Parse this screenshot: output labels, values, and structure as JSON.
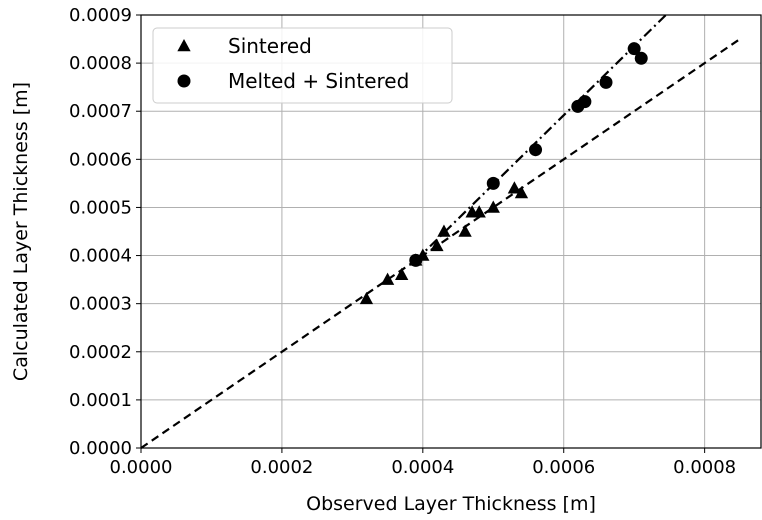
{
  "chart_data": {
    "type": "scatter",
    "xlabel": "Observed Layer Thickness [m]",
    "ylabel": "Calculated Layer Thickness [m]",
    "xlim": [
      0,
      0.00088
    ],
    "ylim": [
      0,
      0.0009
    ],
    "x_ticks": [
      "0.0000",
      "0.0002",
      "0.0004",
      "0.0006",
      "0.0008"
    ],
    "y_ticks": [
      "0.0000",
      "0.0001",
      "0.0002",
      "0.0003",
      "0.0004",
      "0.0005",
      "0.0006",
      "0.0007",
      "0.0008",
      "0.0009"
    ],
    "x_tick_values": [
      0,
      0.0002,
      0.0004,
      0.0006,
      0.0008
    ],
    "y_tick_values": [
      0,
      0.0001,
      0.0002,
      0.0003,
      0.0004,
      0.0005,
      0.0006,
      0.0007,
      0.0008,
      0.0009
    ],
    "grid": true,
    "legend_position": "top-left",
    "series": [
      {
        "name": "Sintered",
        "marker": "triangle",
        "color": "#000000",
        "x": [
          0.00032,
          0.00035,
          0.00037,
          0.00039,
          0.0004,
          0.00042,
          0.00043,
          0.00046,
          0.00047,
          0.00048,
          0.0005,
          0.00053,
          0.00054
        ],
        "y": [
          0.00031,
          0.00035,
          0.00036,
          0.00039,
          0.0004,
          0.00042,
          0.00045,
          0.00045,
          0.00049,
          0.00049,
          0.0005,
          0.00054,
          0.00053
        ]
      },
      {
        "name": "Melted + Sintered",
        "marker": "circle",
        "color": "#000000",
        "x": [
          0.00039,
          0.0005,
          0.00056,
          0.00062,
          0.00063,
          0.00066,
          0.0007,
          0.00071
        ],
        "y": [
          0.00039,
          0.00055,
          0.00062,
          0.00071,
          0.00072,
          0.00076,
          0.00083,
          0.00081
        ]
      }
    ],
    "reference_lines": [
      {
        "style": "dashed",
        "x": [
          0,
          0.00085
        ],
        "y": [
          0,
          0.00085
        ]
      },
      {
        "style": "dash-dot",
        "x": [
          0.00039,
          0.000745
        ],
        "y": [
          0.00039,
          0.0009
        ]
      }
    ]
  }
}
